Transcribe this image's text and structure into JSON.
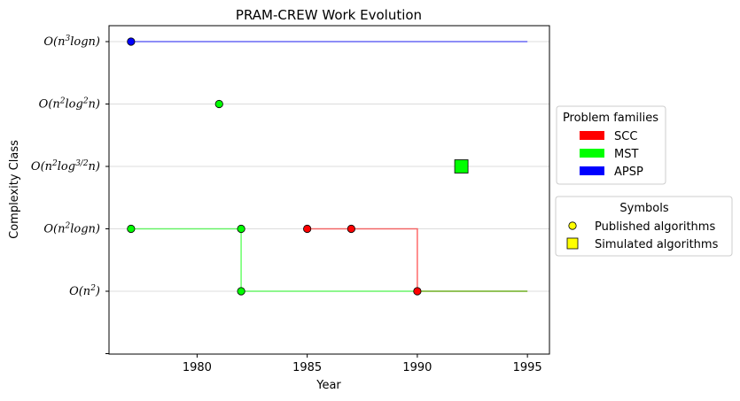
{
  "chart_data": {
    "type": "scatter",
    "title": "PRAM-CREW Work Evolution",
    "xlabel": "Year",
    "ylabel": "Complexity Class",
    "xlim": [
      1976,
      1996
    ],
    "x_ticks": [
      1980,
      1985,
      1990,
      1995
    ],
    "categories": [
      {
        "base": "O(n",
        "sup": "2",
        "tail": ")"
      },
      {
        "base": "O(n",
        "sup": "2",
        "tail": "logn)"
      },
      {
        "base": "O(n",
        "sup": "2",
        "tail": "log",
        "sup2": "3/2",
        "tail2": "n)"
      },
      {
        "base": "O(n",
        "sup": "2",
        "tail": "log",
        "sup2": "2",
        "tail2": "n)"
      },
      {
        "base": "O(n",
        "sup": "3",
        "tail": "logn)"
      }
    ],
    "grid": "horizontal",
    "legend_placement": "right",
    "series": [
      {
        "name": "SCC",
        "color": "#ff0000",
        "steps": [
          [
            1985,
            1
          ],
          [
            1990,
            1
          ],
          [
            1990,
            0
          ],
          [
            1995,
            0
          ]
        ],
        "published": [
          [
            1985,
            1
          ],
          [
            1987,
            1
          ],
          [
            1990,
            0
          ]
        ],
        "simulated": []
      },
      {
        "name": "MST",
        "color": "#00ff00",
        "steps": [
          [
            1977,
            1
          ],
          [
            1982,
            1
          ],
          [
            1982,
            0
          ],
          [
            1995,
            0
          ]
        ],
        "published": [
          [
            1977,
            1
          ],
          [
            1981,
            3
          ],
          [
            1982,
            1
          ],
          [
            1982,
            0
          ]
        ],
        "simulated": [
          [
            1992,
            2
          ]
        ]
      },
      {
        "name": "APSP",
        "color": "#0000ff",
        "steps": [
          [
            1977,
            4
          ],
          [
            1995,
            4
          ]
        ],
        "published": [
          [
            1977,
            4
          ]
        ],
        "simulated": []
      }
    ],
    "legends": {
      "families_title": "Problem families",
      "symbols_title": "Symbols",
      "symbols": [
        {
          "label": "Published algorithms",
          "color": "#ffff00",
          "shape": "circle"
        },
        {
          "label": "Simulated algorithms",
          "color": "#ffff00",
          "shape": "square"
        }
      ]
    }
  }
}
